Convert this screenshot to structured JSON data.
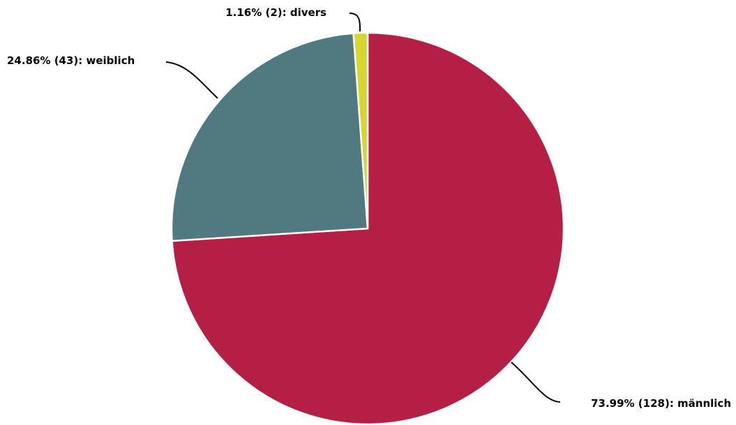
{
  "chart_data": {
    "type": "pie",
    "slices": [
      {
        "label": "männlich",
        "count": 128,
        "percent": 73.99,
        "text": "73.99% (128): männlich",
        "color": "#b51f44"
      },
      {
        "label": "weiblich",
        "count": 43,
        "percent": 24.86,
        "text": "24.86% (43): weiblich",
        "color": "#517a80"
      },
      {
        "label": "divers",
        "count": 2,
        "percent": 1.16,
        "text": "1.16% (2): divers",
        "color": "#d7d630"
      }
    ],
    "start_angle_deg": 0,
    "direction": "clockwise",
    "legend": "none",
    "labels": "outside-with-leader-lines"
  }
}
